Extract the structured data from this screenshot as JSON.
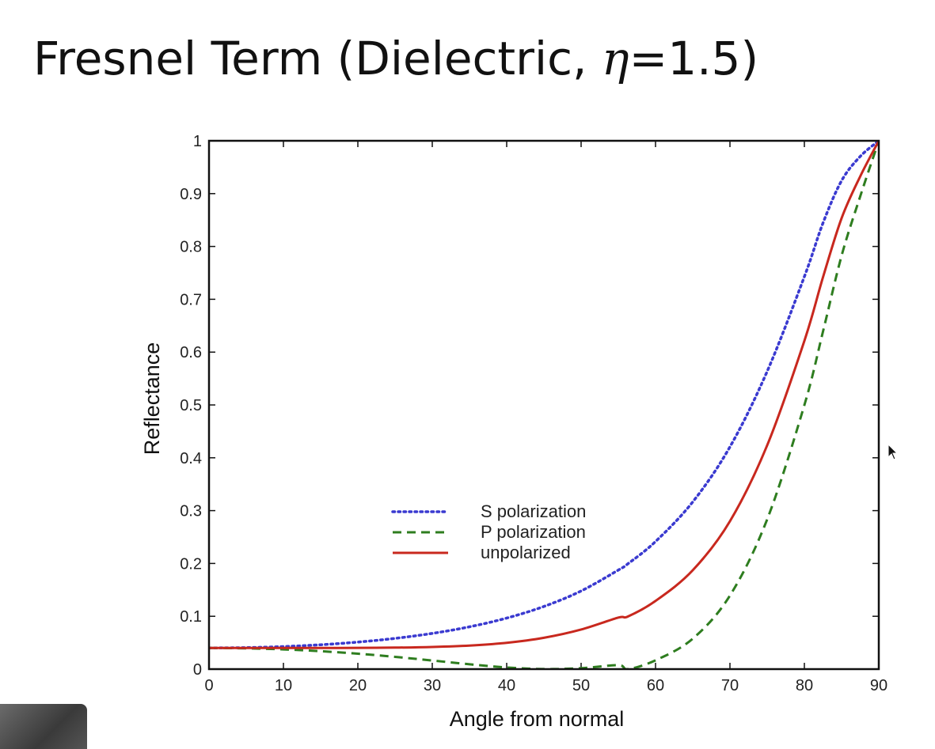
{
  "slide": {
    "title_prefix": "Fresnel Term (Dielectric, ",
    "title_symbol": "η",
    "title_suffix": "=1.5)"
  },
  "chart_data": {
    "type": "line",
    "title": "Fresnel Term (Dielectric, η=1.5)",
    "xlabel": "Angle from normal",
    "ylabel": "Reflectance",
    "xlim": [
      0,
      90
    ],
    "ylim": [
      0,
      1
    ],
    "x_ticks": [
      0,
      10,
      20,
      30,
      40,
      50,
      60,
      70,
      80,
      90
    ],
    "y_ticks": [
      0,
      0.1,
      0.2,
      0.3,
      0.4,
      0.5,
      0.6,
      0.7,
      0.8,
      0.9,
      1
    ],
    "y_tick_labels": [
      "0",
      "0.1",
      "0.2",
      "0.3",
      "0.4",
      "0.5",
      "0.6",
      "0.7",
      "0.8",
      "0.9",
      "1"
    ],
    "grid": false,
    "legend_position": "center-left",
    "x": [
      0,
      5,
      10,
      15,
      20,
      25,
      30,
      35,
      40,
      45,
      50,
      55,
      56.31,
      60,
      65,
      70,
      75,
      80,
      82.5,
      85,
      87.5,
      90
    ],
    "series": [
      {
        "name": "S polarization",
        "color": "#3a3ad0",
        "style": "dotted",
        "values": [
          0.04,
          0.0407,
          0.0427,
          0.0461,
          0.0512,
          0.0582,
          0.0676,
          0.0801,
          0.0966,
          0.1186,
          0.1479,
          0.1875,
          0.1996,
          0.2415,
          0.3165,
          0.4207,
          0.5635,
          0.7429,
          0.8443,
          0.9244,
          0.9703,
          1.0
        ]
      },
      {
        "name": "P polarization",
        "color": "#2e7d1f",
        "style": "dashed",
        "values": [
          0.04,
          0.0393,
          0.0373,
          0.0339,
          0.0292,
          0.0232,
          0.0163,
          0.0092,
          0.0031,
          0.0001,
          0.0018,
          0.0076,
          0.0,
          0.0167,
          0.0576,
          0.1393,
          0.2834,
          0.4997,
          0.6388,
          0.7824,
          0.8946,
          1.0
        ]
      },
      {
        "name": "unpolarized",
        "color": "#c8281e",
        "style": "solid",
        "values": [
          0.04,
          0.04,
          0.04,
          0.04,
          0.0402,
          0.0407,
          0.042,
          0.0446,
          0.0498,
          0.0593,
          0.0749,
          0.0976,
          0.0998,
          0.1291,
          0.1871,
          0.28,
          0.4235,
          0.6213,
          0.7416,
          0.8534,
          0.9325,
          1.0
        ]
      }
    ]
  }
}
